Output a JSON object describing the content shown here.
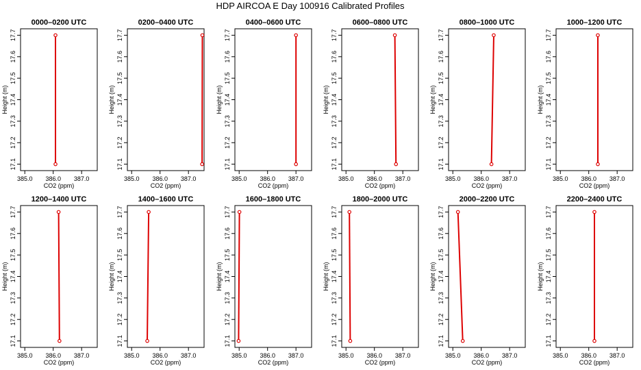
{
  "title": "HDP AIRCOA E  Day 100916  Calibrated Profiles",
  "colors": {
    "profile": "#dd0000",
    "axis": "#000000"
  },
  "chart_data": [
    {
      "type": "line",
      "title": "0000–0200 UTC",
      "xlabel": "CO2 (ppm)",
      "ylabel": "Height (m)",
      "xlim": [
        384.85,
        387.55
      ],
      "ylim": [
        17.07,
        17.73
      ],
      "xticks": [
        "385.0",
        "386.0",
        "387.0"
      ],
      "yticks": [
        "17.1",
        "17.2",
        "17.3",
        "17.4",
        "17.5",
        "17.6",
        "17.7"
      ],
      "x": [
        386.08,
        386.08
      ],
      "y": [
        17.1,
        17.7
      ]
    },
    {
      "type": "line",
      "title": "0200–0400 UTC",
      "xlabel": "CO2 (ppm)",
      "ylabel": "Height (m)",
      "xlim": [
        384.85,
        387.55
      ],
      "ylim": [
        17.07,
        17.73
      ],
      "xticks": [
        "385.0",
        "386.0",
        "387.0"
      ],
      "yticks": [
        "17.1",
        "17.2",
        "17.3",
        "17.4",
        "17.5",
        "17.6",
        "17.7"
      ],
      "x": [
        387.48,
        387.49
      ],
      "y": [
        17.1,
        17.7
      ]
    },
    {
      "type": "line",
      "title": "0400–0600 UTC",
      "xlabel": "CO2 (ppm)",
      "ylabel": "Height (m)",
      "xlim": [
        384.85,
        387.55
      ],
      "ylim": [
        17.07,
        17.73
      ],
      "xticks": [
        "385.0",
        "386.0",
        "387.0"
      ],
      "yticks": [
        "17.1",
        "17.2",
        "17.3",
        "17.4",
        "17.5",
        "17.6",
        "17.7"
      ],
      "x": [
        387.0,
        387.0
      ],
      "y": [
        17.1,
        17.7
      ]
    },
    {
      "type": "line",
      "title": "0600–0800 UTC",
      "xlabel": "CO2 (ppm)",
      "ylabel": "Height (m)",
      "xlim": [
        384.85,
        387.55
      ],
      "ylim": [
        17.07,
        17.73
      ],
      "xticks": [
        "385.0",
        "386.0",
        "387.0"
      ],
      "yticks": [
        "17.1",
        "17.2",
        "17.3",
        "17.4",
        "17.5",
        "17.6",
        "17.7"
      ],
      "x": [
        386.76,
        386.72
      ],
      "y": [
        17.1,
        17.7
      ]
    },
    {
      "type": "line",
      "title": "0800–1000 UTC",
      "xlabel": "CO2 (ppm)",
      "ylabel": "Height (m)",
      "xlim": [
        384.85,
        387.55
      ],
      "ylim": [
        17.07,
        17.73
      ],
      "xticks": [
        "385.0",
        "386.0",
        "387.0"
      ],
      "yticks": [
        "17.1",
        "17.2",
        "17.3",
        "17.4",
        "17.5",
        "17.6",
        "17.7"
      ],
      "x": [
        386.36,
        386.44
      ],
      "y": [
        17.1,
        17.7
      ]
    },
    {
      "type": "line",
      "title": "1000–1200 UTC",
      "xlabel": "CO2 (ppm)",
      "ylabel": "Height (m)",
      "xlim": [
        384.85,
        387.55
      ],
      "ylim": [
        17.07,
        17.73
      ],
      "xticks": [
        "385.0",
        "386.0",
        "387.0"
      ],
      "yticks": [
        "17.1",
        "17.2",
        "17.3",
        "17.4",
        "17.5",
        "17.6",
        "17.7"
      ],
      "x": [
        386.32,
        386.32
      ],
      "y": [
        17.1,
        17.7
      ]
    },
    {
      "type": "line",
      "title": "1200–1400 UTC",
      "xlabel": "CO2 (ppm)",
      "ylabel": "Height (m)",
      "xlim": [
        384.85,
        387.55
      ],
      "ylim": [
        17.07,
        17.73
      ],
      "xticks": [
        "385.0",
        "386.0",
        "387.0"
      ],
      "yticks": [
        "17.1",
        "17.2",
        "17.3",
        "17.4",
        "17.5",
        "17.6",
        "17.7"
      ],
      "x": [
        386.22,
        386.19
      ],
      "y": [
        17.1,
        17.7
      ]
    },
    {
      "type": "line",
      "title": "1400–1600 UTC",
      "xlabel": "CO2 (ppm)",
      "ylabel": "Height (m)",
      "xlim": [
        384.85,
        387.55
      ],
      "ylim": [
        17.07,
        17.73
      ],
      "xticks": [
        "385.0",
        "386.0",
        "387.0"
      ],
      "yticks": [
        "17.1",
        "17.2",
        "17.3",
        "17.4",
        "17.5",
        "17.6",
        "17.7"
      ],
      "x": [
        385.55,
        385.6
      ],
      "y": [
        17.1,
        17.7
      ]
    },
    {
      "type": "line",
      "title": "1600–1800 UTC",
      "xlabel": "CO2 (ppm)",
      "ylabel": "Height (m)",
      "xlim": [
        384.85,
        387.55
      ],
      "ylim": [
        17.07,
        17.73
      ],
      "xticks": [
        "385.0",
        "386.0",
        "387.0"
      ],
      "yticks": [
        "17.1",
        "17.2",
        "17.3",
        "17.4",
        "17.5",
        "17.6",
        "17.7"
      ],
      "x": [
        384.98,
        385.01
      ],
      "y": [
        17.1,
        17.7
      ]
    },
    {
      "type": "line",
      "title": "1800–2000 UTC",
      "xlabel": "CO2 (ppm)",
      "ylabel": "Height (m)",
      "xlim": [
        384.85,
        387.55
      ],
      "ylim": [
        17.07,
        17.73
      ],
      "xticks": [
        "385.0",
        "386.0",
        "387.0"
      ],
      "yticks": [
        "17.1",
        "17.2",
        "17.3",
        "17.4",
        "17.5",
        "17.6",
        "17.7"
      ],
      "x": [
        385.15,
        385.12
      ],
      "y": [
        17.1,
        17.7
      ]
    },
    {
      "type": "line",
      "title": "2000–2200 UTC",
      "xlabel": "CO2 (ppm)",
      "ylabel": "Height (m)",
      "xlim": [
        384.85,
        387.55
      ],
      "ylim": [
        17.07,
        17.73
      ],
      "xticks": [
        "385.0",
        "386.0",
        "387.0"
      ],
      "yticks": [
        "17.1",
        "17.2",
        "17.3",
        "17.4",
        "17.5",
        "17.6",
        "17.7"
      ],
      "x": [
        385.35,
        385.18
      ],
      "y": [
        17.1,
        17.7
      ]
    },
    {
      "type": "line",
      "title": "2200–2400 UTC",
      "xlabel": "CO2 (ppm)",
      "ylabel": "Height (m)",
      "xlim": [
        384.85,
        387.55
      ],
      "ylim": [
        17.07,
        17.73
      ],
      "xticks": [
        "385.0",
        "386.0",
        "387.0"
      ],
      "yticks": [
        "17.1",
        "17.2",
        "17.3",
        "17.4",
        "17.5",
        "17.6",
        "17.7"
      ],
      "x": [
        386.2,
        386.2
      ],
      "y": [
        17.1,
        17.7
      ]
    }
  ]
}
